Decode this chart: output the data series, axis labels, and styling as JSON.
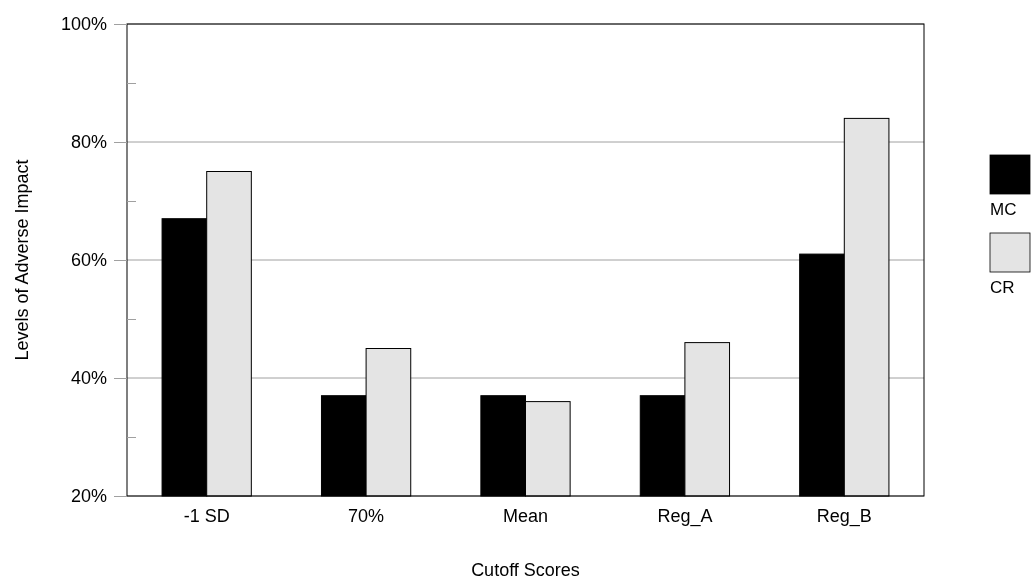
{
  "chart_data": {
    "type": "bar",
    "xlabel": "Cutoff Scores",
    "ylabel": "Levels of Adverse Impact",
    "categories": [
      "-1 SD",
      "70%",
      "Mean",
      "Reg_A",
      "Reg_B"
    ],
    "series": [
      {
        "name": "MC",
        "color": "#000000",
        "values": [
          67,
          37,
          37,
          37,
          61
        ]
      },
      {
        "name": "CR",
        "color": "#e4e4e4",
        "values": [
          75,
          45,
          36,
          46,
          84
        ]
      }
    ],
    "ylim": [
      20,
      100
    ],
    "yticks": [
      {
        "value": 20,
        "label": "20%"
      },
      {
        "value": 30,
        "label": null
      },
      {
        "value": 40,
        "label": "40%"
      },
      {
        "value": 50,
        "label": null
      },
      {
        "value": 60,
        "label": "60%"
      },
      {
        "value": 70,
        "label": null
      },
      {
        "value": 80,
        "label": "80%"
      },
      {
        "value": 90,
        "label": null
      },
      {
        "value": 100,
        "label": "100%"
      }
    ],
    "grid": "y",
    "legend": "right"
  }
}
